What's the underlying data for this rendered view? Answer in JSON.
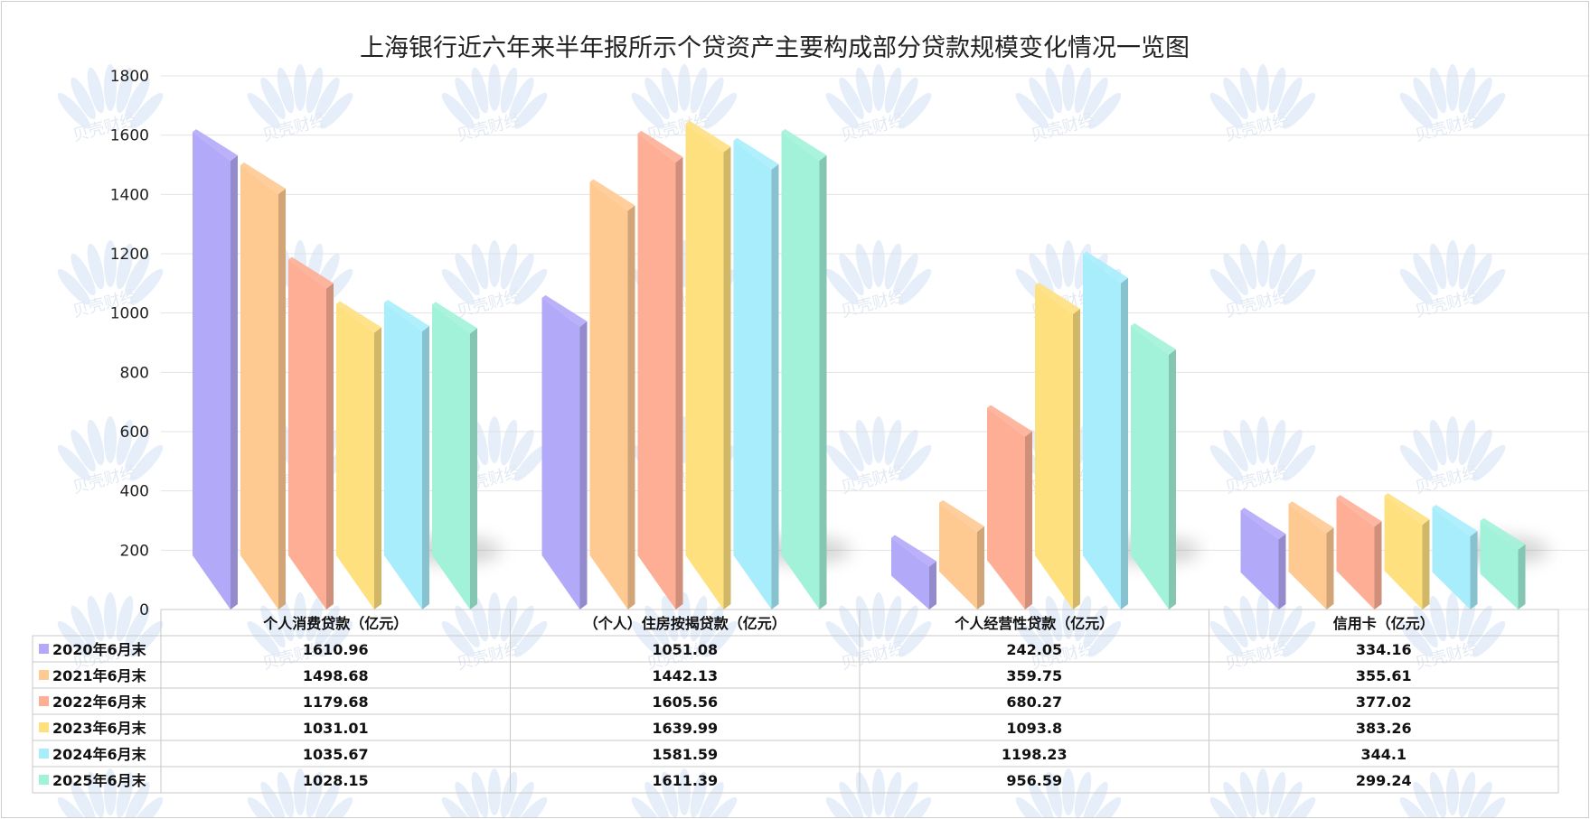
{
  "chart_data": {
    "type": "bar",
    "title": "上海银行近六年来半年报所示个贷资产主要构成部分贷款规模变化情况一览图",
    "categories": [
      "个人消费贷款（亿元）",
      "（个人）住房按揭贷款（亿元）",
      "个人经营性贷款（亿元）",
      "信用卡（亿元）"
    ],
    "series": [
      {
        "name": "2020年6月末",
        "color": "#b3a9f9",
        "values": [
          1610.96,
          1051.08,
          242.05,
          334.16
        ]
      },
      {
        "name": "2021年6月末",
        "color": "#ffc992",
        "values": [
          1498.68,
          1442.13,
          359.75,
          355.61
        ]
      },
      {
        "name": "2022年6月末",
        "color": "#fdae95",
        "values": [
          1179.68,
          1605.56,
          680.27,
          377.02
        ]
      },
      {
        "name": "2023年6月末",
        "color": "#ffe07f",
        "values": [
          1031.01,
          1639.99,
          1093.8,
          383.26
        ]
      },
      {
        "name": "2024年6月末",
        "color": "#a7edfc",
        "values": [
          1035.67,
          1581.59,
          1198.23,
          344.1
        ]
      },
      {
        "name": "2025年6月末",
        "color": "#a1f2d8",
        "values": [
          1028.15,
          1611.39,
          956.59,
          299.24
        ]
      }
    ],
    "yticks": [
      0,
      200,
      400,
      600,
      800,
      1000,
      1200,
      1400,
      1600,
      1800
    ],
    "ylim": [
      0,
      1800
    ],
    "grid": true,
    "legend": "data-table"
  },
  "watermark": "贝壳财经"
}
